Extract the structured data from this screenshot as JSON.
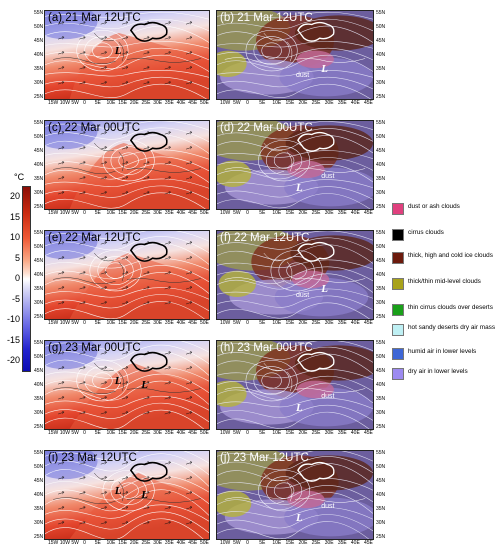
{
  "panels": [
    {
      "id": "a",
      "label": "(a) 21 Mar 12UTC",
      "type": "temp",
      "notes": [
        "L"
      ]
    },
    {
      "id": "b",
      "label": "(b) 21 Mar 12UTC",
      "type": "sat",
      "notes": [
        "dust",
        "L"
      ]
    },
    {
      "id": "c",
      "label": "(c) 22 Mar 00UTC",
      "type": "temp",
      "notes": []
    },
    {
      "id": "d",
      "label": "(d) 22 Mar 00UTC",
      "type": "sat",
      "notes": [
        "L",
        "dust"
      ]
    },
    {
      "id": "e",
      "label": "(e) 22 Mar 12UTC",
      "type": "temp",
      "notes": []
    },
    {
      "id": "f",
      "label": "(f) 22 Mar 12UTC",
      "type": "sat",
      "notes": [
        "dust",
        "L"
      ]
    },
    {
      "id": "g",
      "label": "(g) 23 Mar 00UTC",
      "type": "temp",
      "notes": [
        "L",
        "L"
      ]
    },
    {
      "id": "h",
      "label": "(h) 23 Mar 00UTC",
      "type": "sat",
      "notes": [
        "L",
        "dust"
      ]
    },
    {
      "id": "i",
      "label": "(i) 23 Mar 12UTC",
      "type": "temp",
      "notes": [
        "L",
        "L"
      ]
    },
    {
      "id": "j",
      "label": "(j) 23 Mar 12UTC",
      "type": "sat",
      "notes": [
        "L",
        "dust"
      ]
    }
  ],
  "axes": {
    "lat_ticks": [
      "55N",
      "50N",
      "45N",
      "40N",
      "35N",
      "30N",
      "25N"
    ],
    "lon_ticks_left": [
      "15W",
      "10W",
      "5W",
      "0",
      "5E",
      "10E",
      "15E",
      "20E",
      "25E",
      "30E",
      "35E",
      "40E",
      "45E",
      "50E"
    ],
    "lon_ticks_right": [
      "10W",
      "5W",
      "0",
      "5E",
      "10E",
      "15E",
      "20E",
      "25E",
      "30E",
      "35E",
      "40E",
      "45E"
    ]
  },
  "colorbar": {
    "unit": "°C",
    "ticks": [
      "20",
      "15",
      "10",
      "5",
      "0",
      "-5",
      "-10",
      "-15",
      "-20"
    ],
    "min": -20,
    "max": 20
  },
  "legend": [
    {
      "label": "dust or ash clouds",
      "color": "#e0407e"
    },
    {
      "label": "cirrus clouds",
      "color": "#000000"
    },
    {
      "label": "thick, high and cold ice clouds",
      "color": "#6b1a0c"
    },
    {
      "label": "thick/thin mid-level clouds",
      "color": "#a8a21a"
    },
    {
      "label": "thin cirrus clouds over deserts",
      "color": "#1aa01a"
    },
    {
      "label": "hot sandy deserts dry air mass",
      "color": "#bff0f4"
    },
    {
      "label": "humid air in lower levels",
      "color": "#3e66d6"
    },
    {
      "label": "dry air in lower levels",
      "color": "#9c8af0"
    }
  ]
}
